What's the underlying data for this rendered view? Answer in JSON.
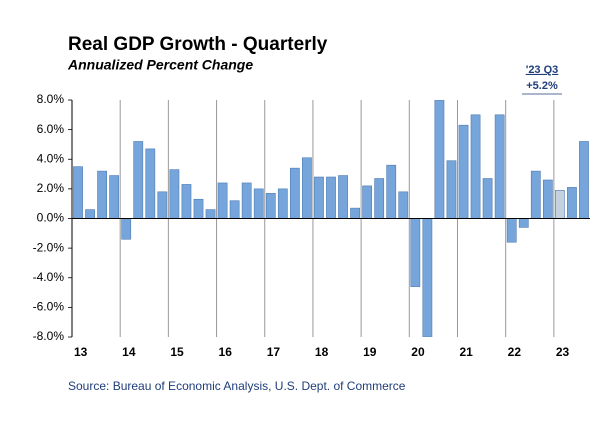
{
  "chart_data": {
    "type": "bar",
    "title": "Real GDP Growth - Quarterly",
    "subtitle": "Annualized  Percent Change",
    "source": "Source: Bureau of Economic Analysis, U.S. Dept. of Commerce",
    "annotations": [
      "'23 Q3",
      "+5.2%"
    ],
    "categories": [
      "13",
      null,
      null,
      null,
      "14",
      null,
      null,
      null,
      "15",
      null,
      null,
      null,
      "16",
      null,
      null,
      null,
      "17",
      null,
      null,
      null,
      "18",
      null,
      null,
      null,
      "19",
      null,
      null,
      null,
      "20",
      null,
      null,
      null,
      "21",
      null,
      null,
      null,
      "22",
      null,
      null,
      null,
      "23",
      null,
      null
    ],
    "values": [
      3.5,
      0.6,
      3.2,
      2.9,
      -1.4,
      5.2,
      4.7,
      1.8,
      3.3,
      2.3,
      1.3,
      0.6,
      2.4,
      1.2,
      2.4,
      2.0,
      1.7,
      2.0,
      3.4,
      4.1,
      2.8,
      2.8,
      2.9,
      0.7,
      2.2,
      2.7,
      3.6,
      1.8,
      -4.6,
      -8.0,
      8.0,
      3.9,
      6.3,
      7.0,
      2.7,
      7.0,
      -1.6,
      -0.6,
      3.2,
      2.6,
      1.9,
      2.1,
      5.2
    ],
    "color": "#76a5dc",
    "highlight_color": "#c3d0de",
    "highlight_index": 40,
    "ylim": [
      -8,
      8
    ],
    "yticks": [
      {
        "value": 8,
        "label": "8.0%"
      },
      {
        "value": 6,
        "label": "6.0%"
      },
      {
        "value": 4,
        "label": "4.0%"
      },
      {
        "value": 2,
        "label": "2.0%"
      },
      {
        "value": 0,
        "label": "0.0%"
      },
      {
        "value": -2,
        "label": "-2.0%"
      },
      {
        "value": -4,
        "label": "-4.0%"
      },
      {
        "value": -6,
        "label": "-6.0%"
      },
      {
        "value": -8,
        "label": "-8.0%"
      }
    ]
  }
}
